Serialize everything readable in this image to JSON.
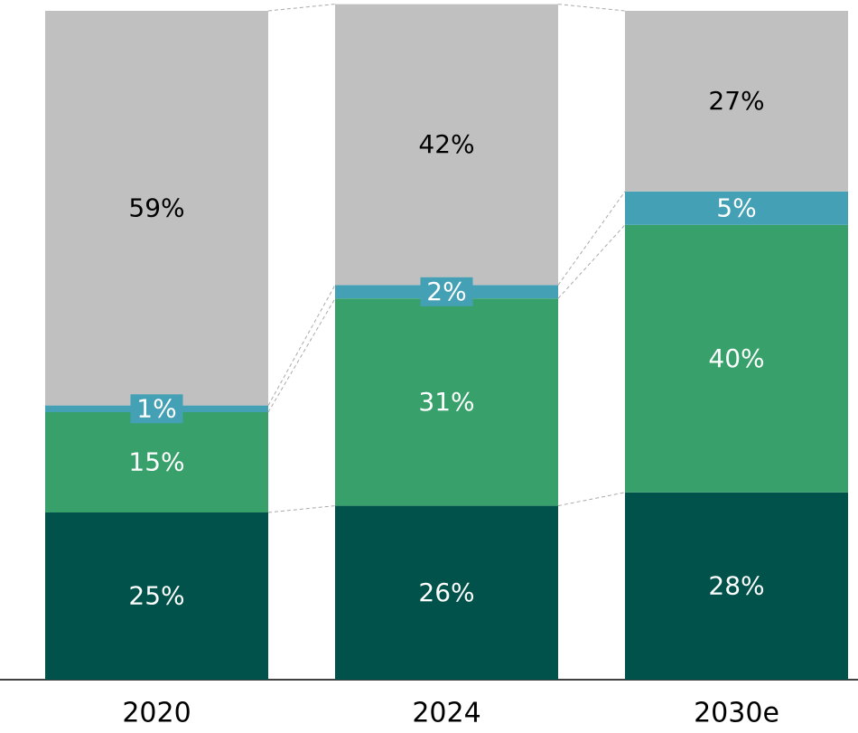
{
  "chart_data": {
    "type": "stacked_bar",
    "categories": [
      "2020",
      "2024",
      "2030e"
    ],
    "ylim": [
      0,
      100
    ],
    "series": [
      {
        "color": "#00524a",
        "label_color": "#ffffff",
        "values": [
          25,
          26,
          28
        ],
        "value_labels": [
          "25%",
          "26%",
          "28%"
        ]
      },
      {
        "color": "#38a06b",
        "label_color": "#ffffff",
        "values": [
          15,
          31,
          40
        ],
        "value_labels": [
          "15%",
          "31%",
          "40%"
        ]
      },
      {
        "color": "#44a0b5",
        "label_color": "#ffffff",
        "values": [
          1,
          2,
          5
        ],
        "value_labels": [
          "1%",
          "2%",
          "5%"
        ]
      },
      {
        "color": "#c0c0c0",
        "label_color": "#000000",
        "values": [
          59,
          42,
          27
        ],
        "value_labels": [
          "59%",
          "42%",
          "27%"
        ]
      }
    ]
  }
}
